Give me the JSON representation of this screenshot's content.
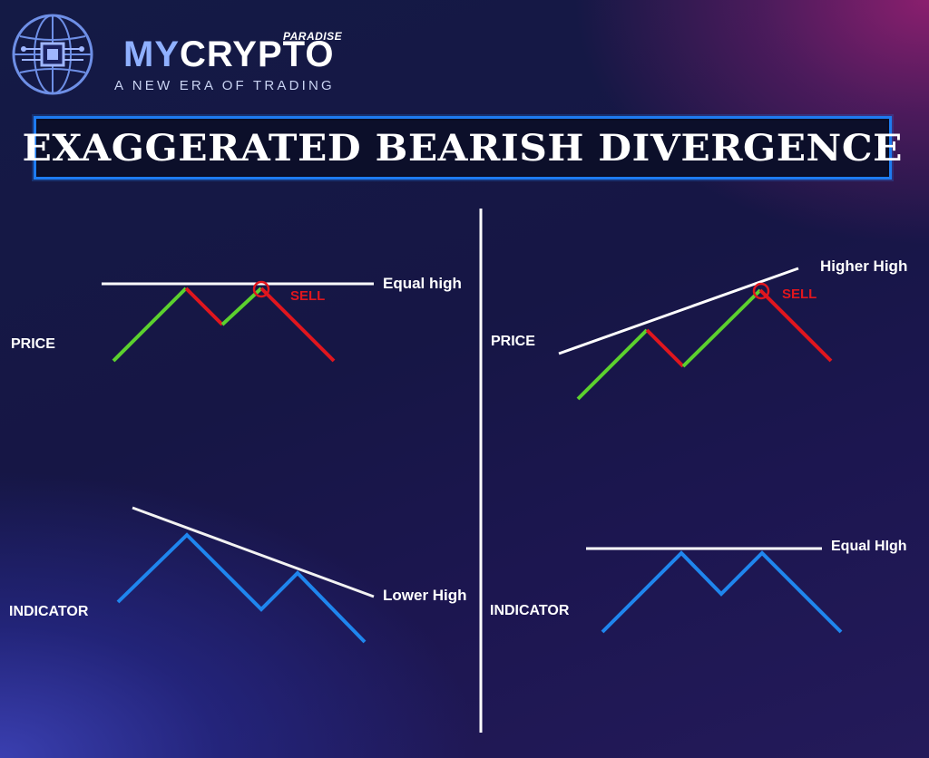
{
  "header": {
    "brand_prefix": "MY",
    "brand_main": "CRYPTO",
    "brand_super": "PARADISE",
    "tagline": "A NEW ERA OF TRADING",
    "logo_icon": "globe-circuit-icon"
  },
  "title": "EXAGGERATED BEARISH DIVERGENCE",
  "left_panel": {
    "price_label": "PRICE",
    "indicator_label": "INDICATOR",
    "price_line_label": "Equal high",
    "indicator_line_label": "Lower High",
    "signal_label": "SELL"
  },
  "right_panel": {
    "price_label": "PRICE",
    "indicator_label": "INDICATOR",
    "price_line_label": "Higher High",
    "indicator_line_label": "Equal HIgh",
    "signal_label": "SELL"
  },
  "colors": {
    "up_move": "#5cd12e",
    "down_move": "#e0161e",
    "indicator": "#1f86ee",
    "trendline": "#ffffff",
    "sell": "#e0161e",
    "title_border": "#1e7bf0"
  }
}
